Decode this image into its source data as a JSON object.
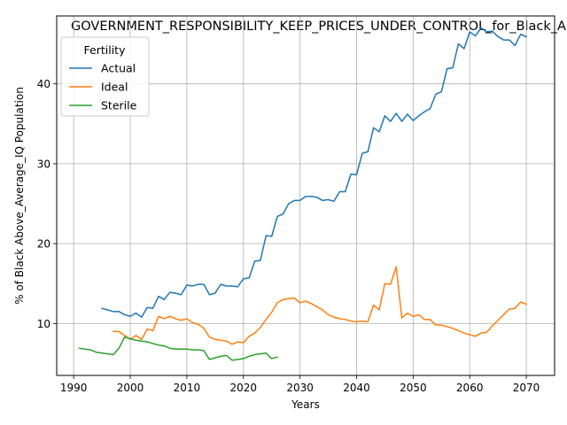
{
  "chart_data": {
    "type": "line",
    "title": "GOVERNMENT_RESPONSIBILITY_KEEP_PRICES_UNDER_CONTROL_for_Black_A",
    "xlabel": "Years",
    "ylabel": "% of Black Above_Average_IQ Population",
    "xlim": [
      1987,
      2075
    ],
    "ylim": [
      3.5,
      48.5
    ],
    "xticks": [
      1990,
      2000,
      2010,
      2020,
      2030,
      2040,
      2050,
      2060,
      2070
    ],
    "yticks": [
      10,
      20,
      30,
      40
    ],
    "grid": true,
    "legend": {
      "title": "Fertility",
      "position": "top-left"
    },
    "series": [
      {
        "name": "Actual",
        "color": "#1f77b4",
        "x": [
          1995,
          1996,
          1997,
          1998,
          1999,
          2000,
          2001,
          2002,
          2003,
          2004,
          2005,
          2006,
          2007,
          2008,
          2009,
          2010,
          2011,
          2012,
          2013,
          2014,
          2015,
          2016,
          2017,
          2018,
          2019,
          2020,
          2021,
          2022,
          2023,
          2024,
          2025,
          2026,
          2027,
          2028,
          2029,
          2030,
          2031,
          2032,
          2033,
          2034,
          2035,
          2036,
          2037,
          2038,
          2039,
          2040,
          2041,
          2042,
          2043,
          2044,
          2045,
          2046,
          2047,
          2048,
          2049,
          2050,
          2051,
          2052,
          2053,
          2054,
          2055,
          2056,
          2057,
          2058,
          2059,
          2060,
          2061,
          2062,
          2063,
          2064,
          2065,
          2066,
          2067,
          2068,
          2069,
          2070
        ],
        "y": [
          11.9,
          11.7,
          11.5,
          11.5,
          11.1,
          10.9,
          11.3,
          10.8,
          12.0,
          11.9,
          13.4,
          13.0,
          13.9,
          13.8,
          13.6,
          14.8,
          14.7,
          14.9,
          14.9,
          13.6,
          13.8,
          14.9,
          14.7,
          14.7,
          14.6,
          15.6,
          15.7,
          17.8,
          17.9,
          21.0,
          20.9,
          23.4,
          23.7,
          25.0,
          25.4,
          25.4,
          25.9,
          25.9,
          25.8,
          25.4,
          25.5,
          25.3,
          26.5,
          26.5,
          28.7,
          28.6,
          31.3,
          31.5,
          34.5,
          34.0,
          36.0,
          35.3,
          36.3,
          35.3,
          36.2,
          35.4,
          36.0,
          36.5,
          36.9,
          38.7,
          39.0,
          41.9,
          42.0,
          45.0,
          44.4,
          46.5,
          46.0,
          47.0,
          46.5,
          46.6,
          45.9,
          45.5,
          45.5,
          44.8,
          46.2,
          45.9
        ]
      },
      {
        "name": "Ideal",
        "color": "#ff7f0e",
        "x": [
          1997,
          1998,
          1999,
          2000,
          2001,
          2002,
          2003,
          2004,
          2005,
          2006,
          2007,
          2008,
          2009,
          2010,
          2011,
          2012,
          2013,
          2014,
          2015,
          2016,
          2017,
          2018,
          2019,
          2020,
          2021,
          2022,
          2023,
          2024,
          2025,
          2026,
          2027,
          2028,
          2029,
          2030,
          2031,
          2032,
          2033,
          2034,
          2035,
          2036,
          2037,
          2038,
          2039,
          2040,
          2041,
          2042,
          2043,
          2044,
          2045,
          2046,
          2047,
          2048,
          2049,
          2050,
          2051,
          2052,
          2053,
          2054,
          2055,
          2056,
          2057,
          2058,
          2059,
          2060,
          2061,
          2062,
          2063,
          2064,
          2065,
          2066,
          2067,
          2068,
          2069,
          2070
        ],
        "y": [
          9.0,
          9.0,
          8.5,
          8.0,
          8.5,
          8.0,
          9.3,
          9.1,
          10.9,
          10.6,
          10.9,
          10.6,
          10.4,
          10.6,
          10.1,
          9.9,
          9.4,
          8.3,
          8.0,
          7.9,
          7.8,
          7.4,
          7.7,
          7.6,
          8.4,
          8.8,
          9.5,
          10.5,
          11.4,
          12.6,
          13.0,
          13.1,
          13.2,
          12.6,
          12.8,
          12.5,
          12.1,
          11.7,
          11.1,
          10.8,
          10.6,
          10.5,
          10.3,
          10.2,
          10.3,
          10.2,
          12.3,
          11.7,
          15.0,
          14.9,
          17.1,
          10.7,
          11.3,
          10.9,
          11.1,
          10.5,
          10.5,
          9.8,
          9.8,
          9.6,
          9.4,
          9.1,
          8.8,
          8.6,
          8.4,
          8.8,
          8.9,
          9.7,
          10.4,
          11.1,
          11.8,
          11.9,
          12.7,
          12.4
        ]
      },
      {
        "name": "Sterile",
        "color": "#2ca02c",
        "x": [
          1991,
          1992,
          1993,
          1994,
          1995,
          1996,
          1997,
          1998,
          1999,
          2000,
          2001,
          2002,
          2003,
          2004,
          2005,
          2006,
          2007,
          2008,
          2009,
          2010,
          2011,
          2012,
          2013,
          2014,
          2015,
          2016,
          2017,
          2018,
          2019,
          2020,
          2021,
          2022,
          2023,
          2024,
          2025,
          2026
        ],
        "y": [
          6.9,
          6.8,
          6.7,
          6.4,
          6.3,
          6.2,
          6.1,
          6.9,
          8.3,
          8.1,
          7.9,
          7.8,
          7.7,
          7.5,
          7.3,
          7.2,
          6.9,
          6.8,
          6.8,
          6.8,
          6.7,
          6.7,
          6.6,
          5.5,
          5.7,
          5.9,
          6.0,
          5.4,
          5.5,
          5.6,
          5.9,
          6.1,
          6.2,
          6.3,
          5.6,
          5.8
        ]
      }
    ]
  }
}
